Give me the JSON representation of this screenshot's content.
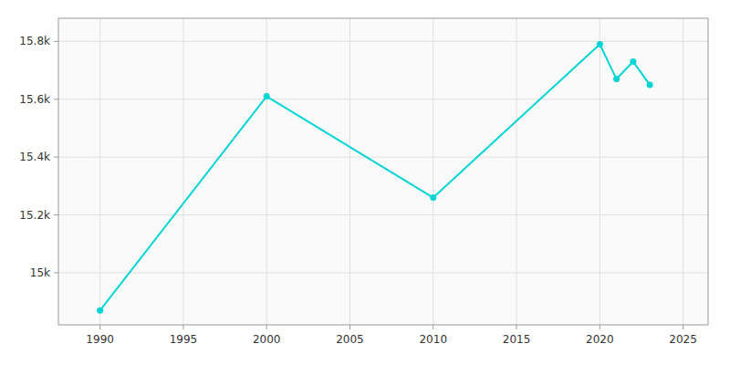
{
  "chart_data": {
    "type": "line",
    "x": [
      1990,
      2000,
      2010,
      2020,
      2021,
      2022,
      2023
    ],
    "values": [
      14870,
      15610,
      15260,
      15790,
      15670,
      15730,
      15650
    ],
    "color": "#00d4d4",
    "marker": "circle",
    "xlim": [
      1987.5,
      2026.5
    ],
    "ylim": [
      14820,
      15880
    ],
    "xticks": [
      1990,
      1995,
      2000,
      2005,
      2010,
      2015,
      2020,
      2025
    ],
    "yticks": [
      {
        "value": 15000,
        "label": "15k"
      },
      {
        "value": 15200,
        "label": "15.2k"
      },
      {
        "value": 15400,
        "label": "15.4k"
      },
      {
        "value": 15600,
        "label": "15.6k"
      },
      {
        "value": 15800,
        "label": "15.8k"
      }
    ],
    "grid": true
  }
}
